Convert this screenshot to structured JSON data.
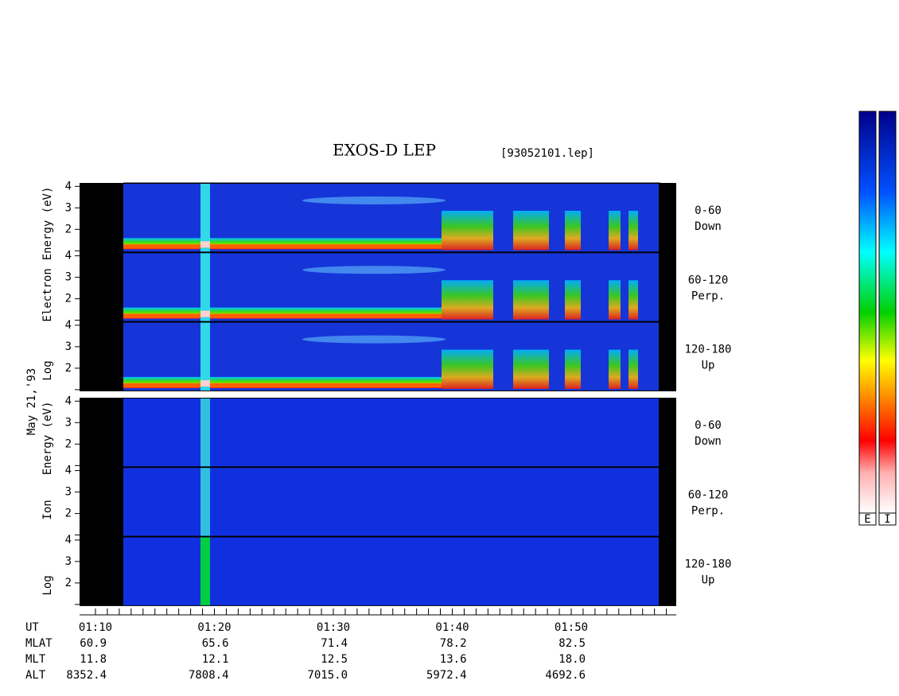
{
  "header": {
    "title": "EXOS-D LEP",
    "file": "[93052101.lep]"
  },
  "date": "May 21,'93",
  "panels": [
    {
      "axis_words": [
        "Log",
        "Electron",
        "Energy (eV)"
      ],
      "subpanels": [
        {
          "yticks": [
            4,
            3,
            2
          ],
          "range": "0-60",
          "direction": "Down"
        },
        {
          "yticks": [
            4,
            3,
            2
          ],
          "range": "60-120",
          "direction": "Perp."
        },
        {
          "yticks": [
            4,
            3,
            2
          ],
          "range": "120-180",
          "direction": "Up"
        }
      ]
    },
    {
      "axis_words": [
        "Log",
        "Ion",
        "Energy (eV)"
      ],
      "subpanels": [
        {
          "yticks": [
            4,
            3,
            2
          ],
          "range": "0-60",
          "direction": "Down"
        },
        {
          "yticks": [
            4,
            3,
            2
          ],
          "range": "60-120",
          "direction": "Perp."
        },
        {
          "yticks": [
            4,
            3,
            2
          ],
          "range": "120-180",
          "direction": "Up"
        }
      ]
    }
  ],
  "time_axis": {
    "label": "UT",
    "ticks": [
      "01:10",
      "01:20",
      "01:30",
      "01:40",
      "01:50"
    ]
  },
  "orbit_rows": [
    {
      "label": "MLAT",
      "values": [
        "60.9",
        "65.6",
        "71.4",
        "78.2",
        "82.5"
      ]
    },
    {
      "label": "MLT",
      "values": [
        "11.8",
        "12.1",
        "12.5",
        "13.6",
        "18.0"
      ]
    },
    {
      "label": "ALT",
      "values": [
        "8352.4",
        "7808.4",
        "7015.0",
        "5972.4",
        "4692.6"
      ]
    }
  ],
  "colorbars": [
    "E",
    "I"
  ]
}
